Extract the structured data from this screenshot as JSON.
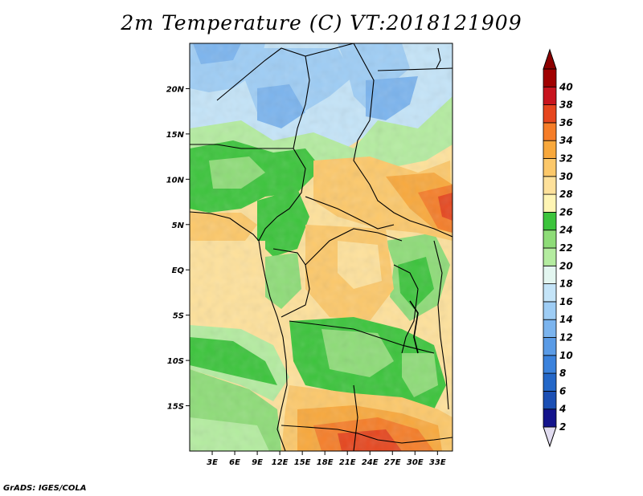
{
  "title": "2m Temperature (C) VT:2018121909",
  "credit": "GrADS: IGES/COLA",
  "map": {
    "lon_range": [
      0,
      35
    ],
    "lat_range": [
      -20,
      25
    ],
    "lon_ticks": [
      "3E",
      "6E",
      "9E",
      "12E",
      "15E",
      "18E",
      "21E",
      "24E",
      "27E",
      "30E",
      "33E"
    ],
    "lat_ticks": [
      "20N",
      "15N",
      "10N",
      "5N",
      "EQ",
      "5S",
      "10S",
      "15S"
    ]
  },
  "colorbar": {
    "levels": [
      "2",
      "4",
      "6",
      "8",
      "10",
      "12",
      "14",
      "16",
      "18",
      "20",
      "22",
      "24",
      "26",
      "28",
      "30",
      "32",
      "34",
      "36",
      "38",
      "40"
    ],
    "colors": [
      "#14148c",
      "#1b4fb4",
      "#2467c8",
      "#3b82dc",
      "#5a9be6",
      "#7bb4ee",
      "#9ecdf5",
      "#c4e4f8",
      "#e3f6f0",
      "#b4eca0",
      "#8edc78",
      "#3cc43c",
      "#fff5b4",
      "#fee19b",
      "#fcc86a",
      "#f8a83c",
      "#f57d28",
      "#e6461e",
      "#c8141e",
      "#a00000"
    ],
    "low_cap_color": "#e1dcf0",
    "high_cap_color": "#8c0000"
  }
}
